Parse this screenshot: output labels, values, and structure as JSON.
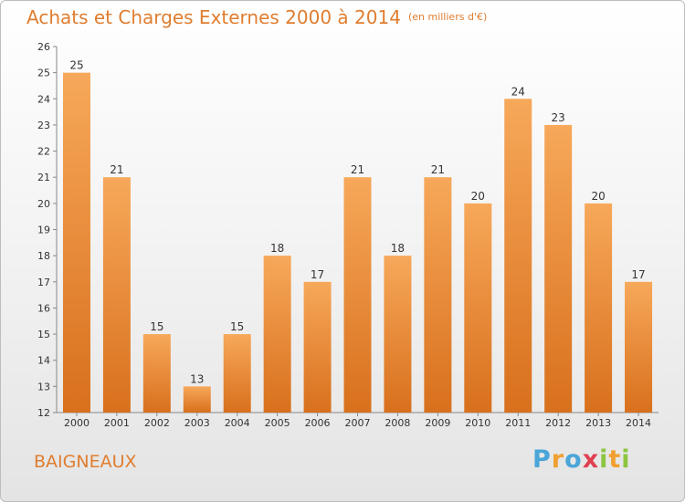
{
  "chart_data": {
    "type": "bar",
    "title": "Achats et Charges Externes 2000 à 2014",
    "subtitle": "(en milliers d'€)",
    "categories": [
      "2000",
      "2001",
      "2002",
      "2003",
      "2004",
      "2005",
      "2006",
      "2007",
      "2008",
      "2009",
      "2010",
      "2011",
      "2012",
      "2013",
      "2014"
    ],
    "values": [
      25,
      21,
      15,
      13,
      15,
      18,
      17,
      21,
      18,
      21,
      20,
      24,
      23,
      20,
      17
    ],
    "xlabel": "",
    "ylabel": "",
    "ylim": [
      12,
      26
    ],
    "yticks": [
      12,
      13,
      14,
      15,
      16,
      17,
      18,
      19,
      20,
      21,
      22,
      23,
      24,
      25,
      26
    ],
    "grid": false,
    "legend": "none",
    "bar_color_top": "#f7a85a",
    "bar_color_bottom": "#d8701c"
  },
  "commune": "BAIGNEAUX",
  "logo": {
    "letters": [
      "P",
      "r",
      "o",
      "x",
      "i",
      "t",
      "i"
    ],
    "colors": [
      "#4aa5d8",
      "#f0a030",
      "#4aa5d8",
      "#e04050",
      "#8cc540",
      "#f0a030",
      "#8cc540"
    ]
  }
}
